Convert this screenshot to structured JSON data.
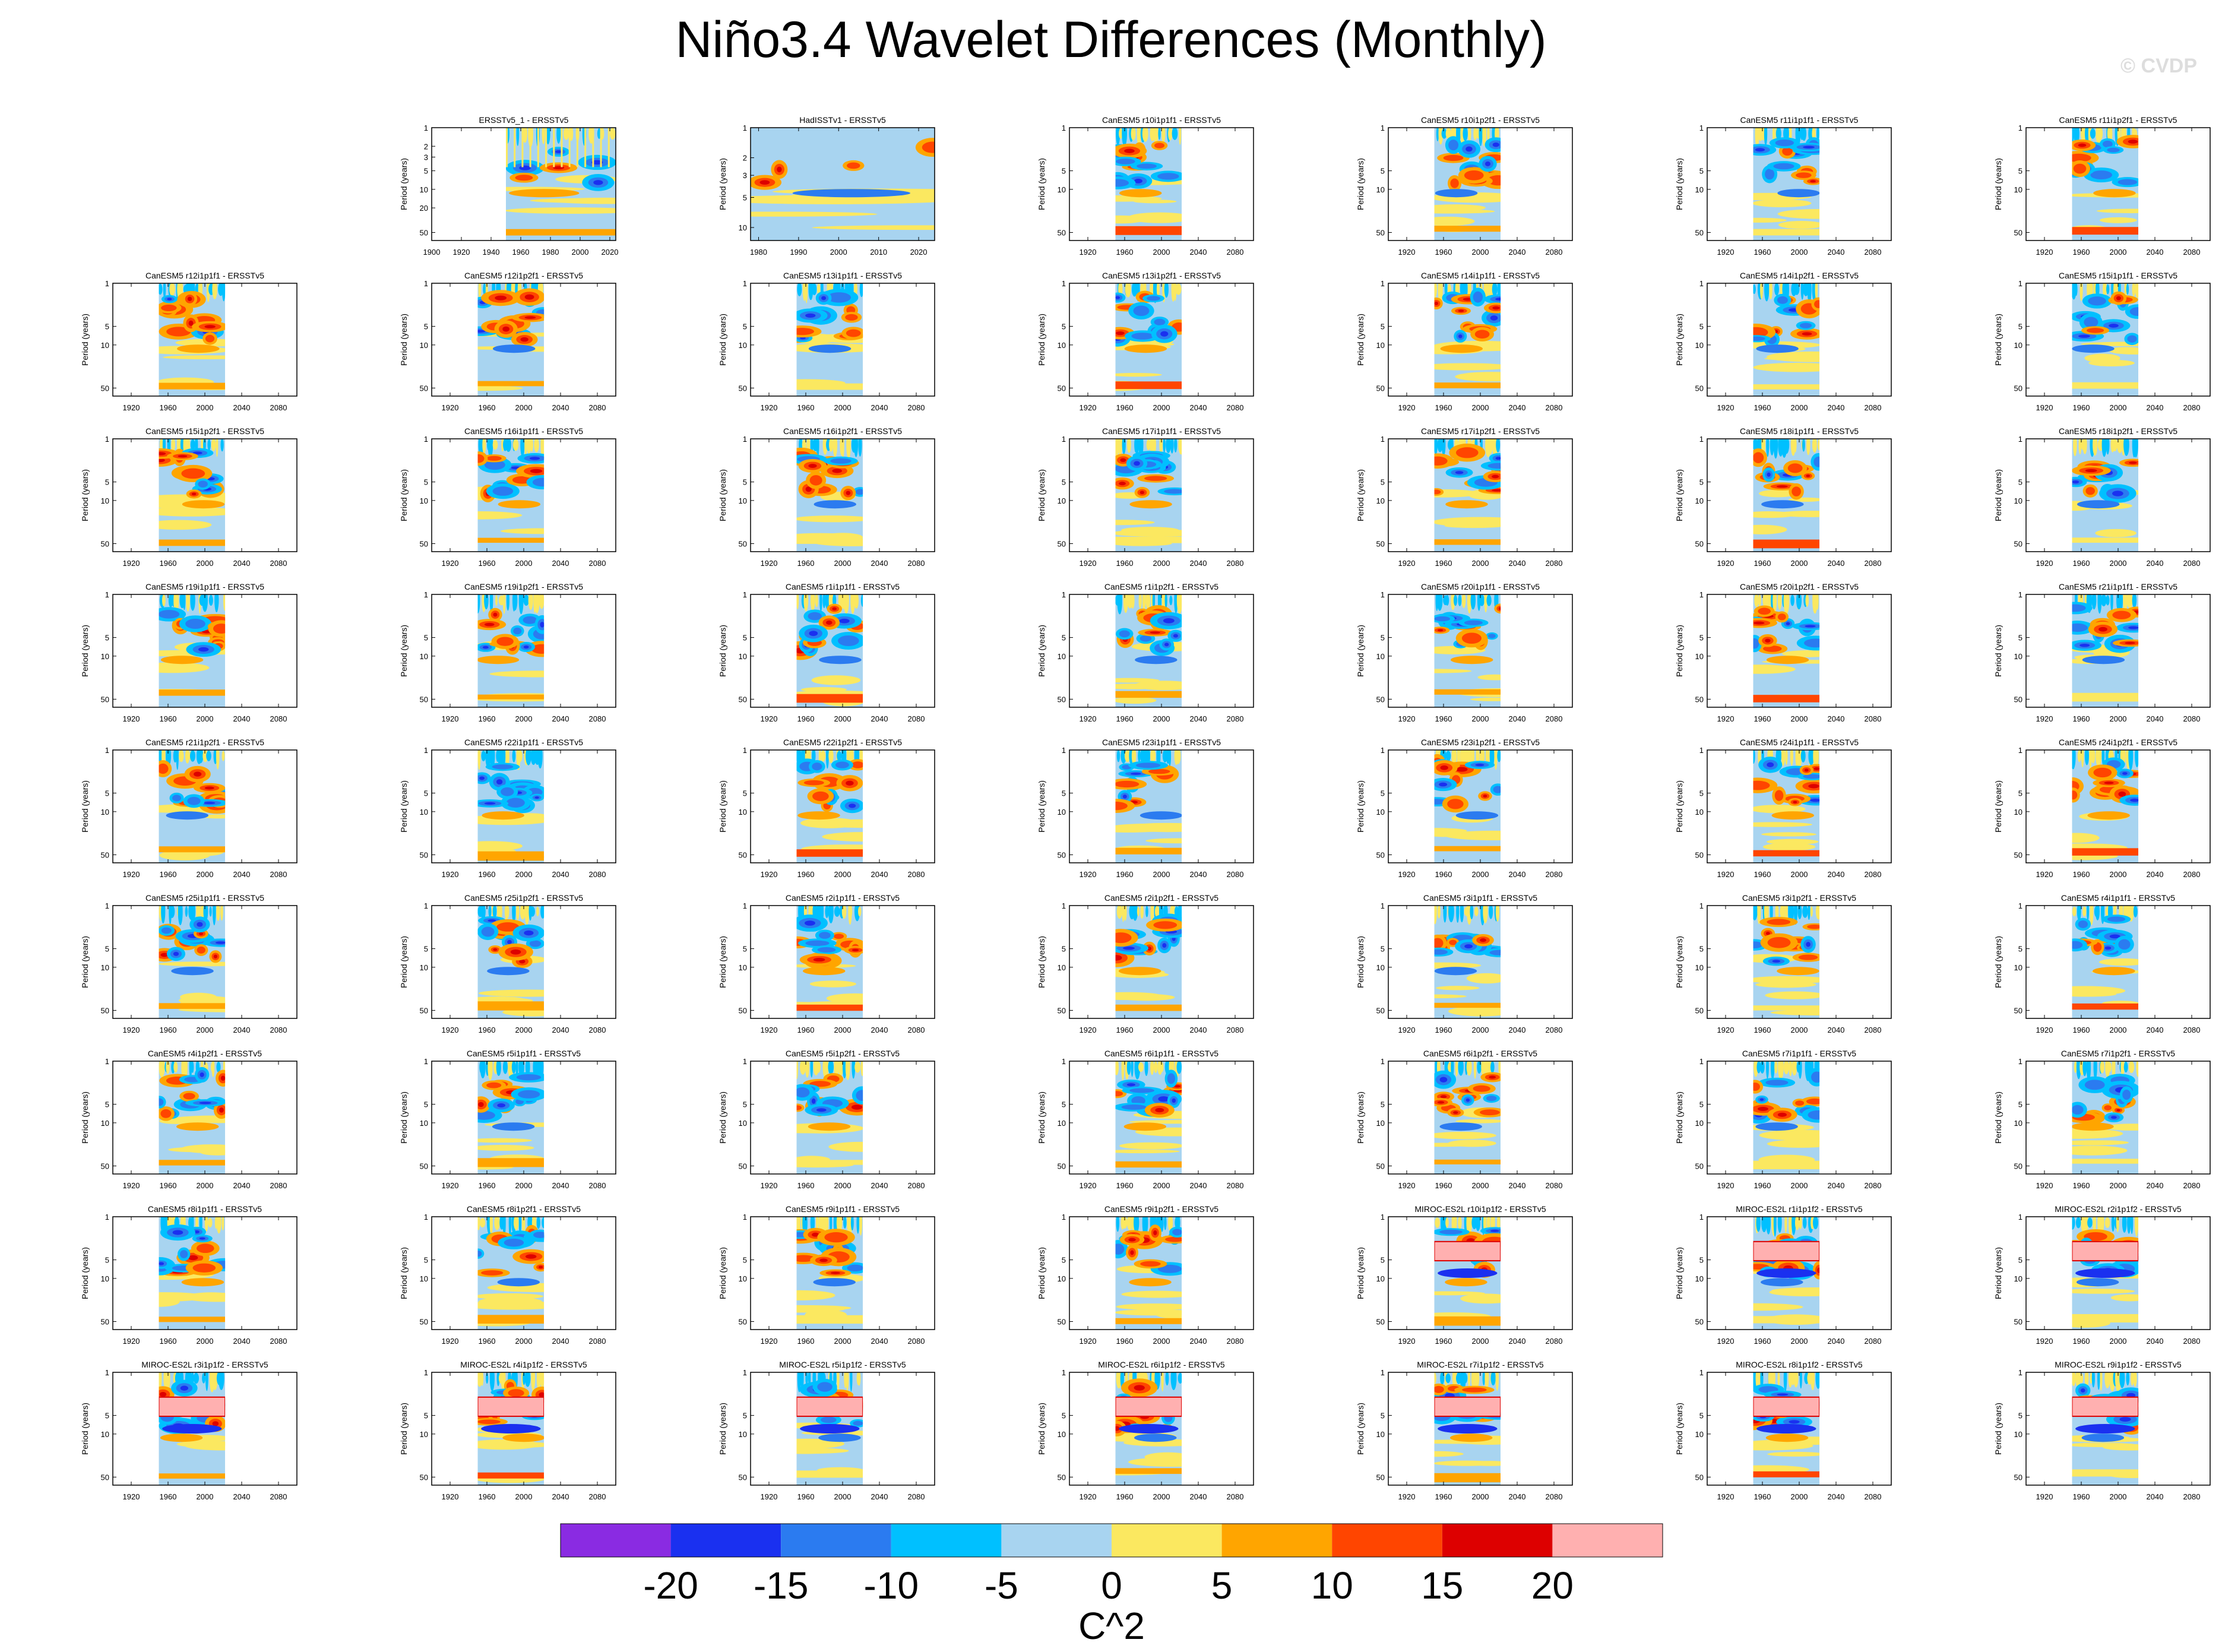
{
  "title": "Niño3.4 Wavelet Differences (Monthly)",
  "watermark": "© CVDP",
  "chart_data": {
    "type": "heatmap",
    "grid": {
      "rows": 9,
      "cols": 7
    },
    "ylabel": "Period (years)",
    "colorbar": {
      "unit": "C^2",
      "levels": [
        -20,
        -15,
        -10,
        -5,
        0,
        5,
        10,
        15,
        20
      ],
      "tick_labels": [
        "-20",
        "-15",
        "-10",
        "-5",
        "0",
        "5",
        "10",
        "15",
        "20"
      ],
      "colors": [
        "#8a2be2",
        "#1a30f0",
        "#2b7bf0",
        "#00c0ff",
        "#a8d4f0",
        "#fbe860",
        "#ffa500",
        "#ff4500",
        "#dd0000",
        "#ffb0b0"
      ]
    },
    "default_x_ticks": [
      "1920",
      "1960",
      "2000",
      "2040",
      "2080"
    ],
    "default_x_range": [
      1900,
      2100
    ],
    "default_y_ticks": [
      "1",
      "5",
      "10",
      "50"
    ],
    "data_range": [
      1950,
      2022
    ],
    "panels": [
      {
        "title": "",
        "empty": true
      },
      {
        "title": "ERSSTv5_1 - ERSSTv5",
        "xlim": [
          1900,
          2024
        ],
        "data_range": [
          1950,
          2024
        ],
        "x_ticks": [
          "1900",
          "1920",
          "1940",
          "1960",
          "1980",
          "2000",
          "2020"
        ],
        "y_ticks": [
          "1",
          "2",
          "3",
          "5",
          "10",
          "20",
          "50"
        ],
        "style": "ersst"
      },
      {
        "title": "HadISSTv1 - ERSSTv5",
        "xlim": [
          1978,
          2024
        ],
        "data_range": [
          1978,
          2024
        ],
        "x_ticks": [
          "1980",
          "1990",
          "2000",
          "2010",
          "2020"
        ],
        "y_ticks": [
          "1",
          "2",
          "3",
          "5",
          "10"
        ],
        "style": "hadisst"
      },
      {
        "title": "CanESM5 r10i1p1f1 - ERSSTv5"
      },
      {
        "title": "CanESM5 r10i1p2f1 - ERSSTv5"
      },
      {
        "title": "CanESM5 r11i1p1f1 - ERSSTv5"
      },
      {
        "title": "CanESM5 r11i1p2f1 - ERSSTv5"
      },
      {
        "title": "CanESM5 r12i1p1f1 - ERSSTv5"
      },
      {
        "title": "CanESM5 r12i1p2f1 - ERSSTv5"
      },
      {
        "title": "CanESM5 r13i1p1f1 - ERSSTv5"
      },
      {
        "title": "CanESM5 r13i1p2f1 - ERSSTv5"
      },
      {
        "title": "CanESM5 r14i1p1f1 - ERSSTv5"
      },
      {
        "title": "CanESM5 r14i1p2f1 - ERSSTv5"
      },
      {
        "title": "CanESM5 r15i1p1f1 - ERSSTv5"
      },
      {
        "title": "CanESM5 r15i1p2f1 - ERSSTv5"
      },
      {
        "title": "CanESM5 r16i1p1f1 - ERSSTv5"
      },
      {
        "title": "CanESM5 r16i1p2f1 - ERSSTv5"
      },
      {
        "title": "CanESM5 r17i1p1f1 - ERSSTv5"
      },
      {
        "title": "CanESM5 r17i1p2f1 - ERSSTv5"
      },
      {
        "title": "CanESM5 r18i1p1f1 - ERSSTv5"
      },
      {
        "title": "CanESM5 r18i1p2f1 - ERSSTv5"
      },
      {
        "title": "CanESM5 r19i1p1f1 - ERSSTv5"
      },
      {
        "title": "CanESM5 r19i1p2f1 - ERSSTv5"
      },
      {
        "title": "CanESM5 r1i1p1f1 - ERSSTv5"
      },
      {
        "title": "CanESM5 r1i1p2f1 - ERSSTv5"
      },
      {
        "title": "CanESM5 r20i1p1f1 - ERSSTv5"
      },
      {
        "title": "CanESM5 r20i1p2f1 - ERSSTv5"
      },
      {
        "title": "CanESM5 r21i1p1f1 - ERSSTv5"
      },
      {
        "title": "CanESM5 r21i1p2f1 - ERSSTv5"
      },
      {
        "title": "CanESM5 r22i1p1f1 - ERSSTv5"
      },
      {
        "title": "CanESM5 r22i1p2f1 - ERSSTv5"
      },
      {
        "title": "CanESM5 r23i1p1f1 - ERSSTv5"
      },
      {
        "title": "CanESM5 r23i1p2f1 - ERSSTv5"
      },
      {
        "title": "CanESM5 r24i1p1f1 - ERSSTv5"
      },
      {
        "title": "CanESM5 r24i1p2f1 - ERSSTv5"
      },
      {
        "title": "CanESM5 r25i1p1f1 - ERSSTv5"
      },
      {
        "title": "CanESM5 r25i1p2f1 - ERSSTv5"
      },
      {
        "title": "CanESM5 r2i1p1f1 - ERSSTv5"
      },
      {
        "title": "CanESM5 r2i1p2f1 - ERSSTv5"
      },
      {
        "title": "CanESM5 r3i1p1f1 - ERSSTv5"
      },
      {
        "title": "CanESM5 r3i1p2f1 - ERSSTv5"
      },
      {
        "title": "CanESM5 r4i1p1f1 - ERSSTv5"
      },
      {
        "title": "CanESM5 r4i1p2f1 - ERSSTv5"
      },
      {
        "title": "CanESM5 r5i1p1f1 - ERSSTv5"
      },
      {
        "title": "CanESM5 r5i1p2f1 - ERSSTv5"
      },
      {
        "title": "CanESM5 r6i1p1f1 - ERSSTv5"
      },
      {
        "title": "CanESM5 r6i1p2f1 - ERSSTv5"
      },
      {
        "title": "CanESM5 r7i1p1f1 - ERSSTv5"
      },
      {
        "title": "CanESM5 r7i1p2f1 - ERSSTv5"
      },
      {
        "title": "CanESM5 r8i1p1f1 - ERSSTv5"
      },
      {
        "title": "CanESM5 r8i1p2f1 - ERSSTv5"
      },
      {
        "title": "CanESM5 r9i1p1f1 - ERSSTv5"
      },
      {
        "title": "CanESM5 r9i1p2f1 - ERSSTv5"
      },
      {
        "title": "MIROC-ES2L r10i1p1f2 - ERSSTv5",
        "style": "miroc"
      },
      {
        "title": "MIROC-ES2L r1i1p1f2 - ERSSTv5",
        "style": "miroc"
      },
      {
        "title": "MIROC-ES2L r2i1p1f2 - ERSSTv5",
        "style": "miroc"
      },
      {
        "title": "MIROC-ES2L r3i1p1f2 - ERSSTv5",
        "style": "miroc"
      },
      {
        "title": "MIROC-ES2L r4i1p1f2 - ERSSTv5",
        "style": "miroc"
      },
      {
        "title": "MIROC-ES2L r5i1p1f2 - ERSSTv5",
        "style": "miroc"
      },
      {
        "title": "MIROC-ES2L r6i1p1f2 - ERSSTv5",
        "style": "miroc"
      },
      {
        "title": "MIROC-ES2L r7i1p1f2 - ERSSTv5",
        "style": "miroc"
      },
      {
        "title": "MIROC-ES2L r8i1p1f2 - ERSSTv5",
        "style": "miroc"
      },
      {
        "title": "MIROC-ES2L r9i1p1f2 - ERSSTv5",
        "style": "miroc"
      }
    ]
  }
}
